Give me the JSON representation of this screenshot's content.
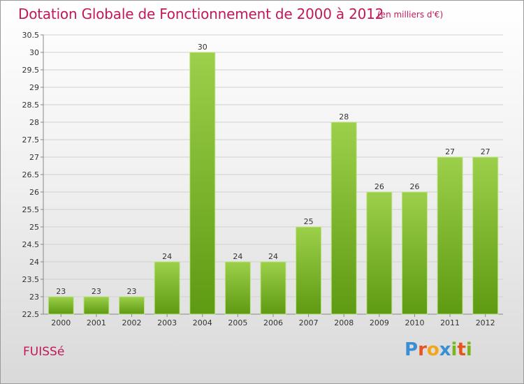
{
  "header": {
    "title": "Dotation Globale de Fonctionnement de 2000 à 2012",
    "subtitle": "(en milliers d'€)"
  },
  "footer": {
    "town": "FUISSé",
    "logo_letters": [
      "P",
      "r",
      "o",
      "x",
      "i",
      "t",
      "i"
    ]
  },
  "colors": {
    "title": "#c2185b",
    "bar_top": "#9dd04a",
    "bar_bottom": "#5e9a12",
    "logo": [
      "#3a8fd4",
      "#e8541f",
      "#f3a51c",
      "#3a8fd4",
      "#7ab51d",
      "#e8541f",
      "#7ab51d"
    ]
  },
  "chart_data": {
    "type": "bar",
    "categories": [
      "2000",
      "2001",
      "2002",
      "2003",
      "2004",
      "2005",
      "2006",
      "2007",
      "2008",
      "2009",
      "2010",
      "2011",
      "2012"
    ],
    "values": [
      23,
      23,
      23,
      24,
      30,
      24,
      24,
      25,
      28,
      26,
      26,
      27,
      27
    ],
    "value_labels": [
      "23",
      "23",
      "23",
      "24",
      "30",
      "24",
      "24",
      "25",
      "28",
      "26",
      "26",
      "27",
      "27"
    ],
    "yticks": [
      "22.5",
      "23",
      "23.5",
      "24",
      "24.5",
      "25",
      "25.5",
      "26",
      "26.5",
      "27",
      "27.5",
      "28",
      "28.5",
      "29",
      "29.5",
      "30",
      "30.5"
    ],
    "ylim": [
      22.5,
      30.5
    ],
    "grid": true
  }
}
